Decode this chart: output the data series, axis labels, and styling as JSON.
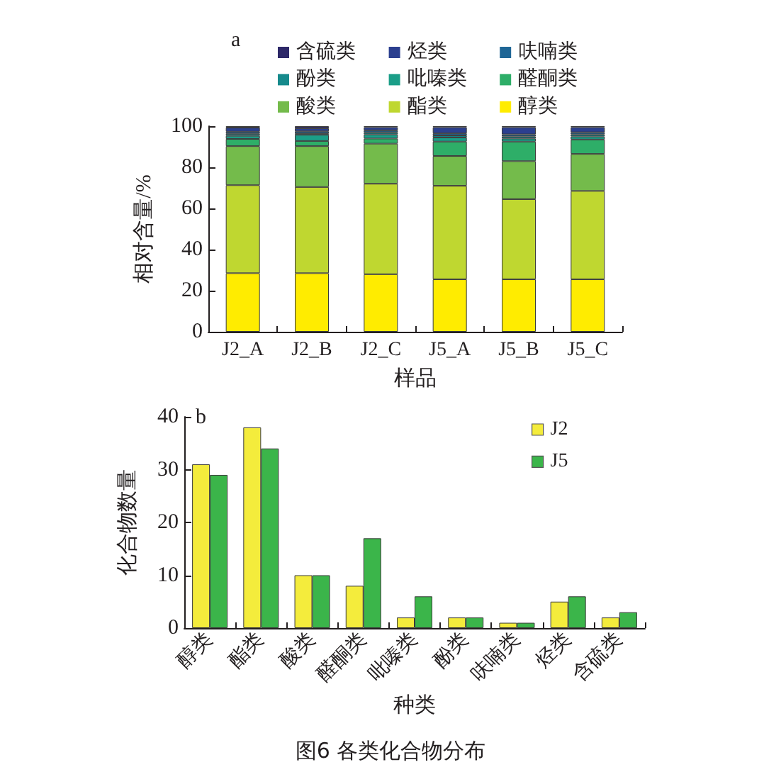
{
  "chart_data": [
    {
      "type": "bar",
      "title": "a",
      "xlabel": "样品",
      "ylabel": "相对含量/%",
      "categories": [
        "J2_A",
        "J2_B",
        "J2_C",
        "J5_A",
        "J5_B",
        "J5_C"
      ],
      "stacked": true,
      "legend": "top",
      "ylim": [
        0,
        100
      ],
      "yticks": [
        0,
        20,
        40,
        60,
        80,
        100
      ],
      "series": [
        {
          "name": "醇类",
          "color": "#ffec00",
          "values": [
            28.5,
            28.5,
            28,
            25.5,
            25.5,
            25.5
          ]
        },
        {
          "name": "酯类",
          "color": "#bfd730",
          "values": [
            42.8,
            41.9,
            44,
            45.5,
            39,
            43
          ]
        },
        {
          "name": "酸类",
          "color": "#74bb4b",
          "values": [
            19,
            19.9,
            19.5,
            14.5,
            18.5,
            18
          ]
        },
        {
          "name": "醛酮类",
          "color": "#2eae68",
          "values": [
            3.5,
            2.5,
            2.5,
            7,
            9.5,
            7
          ]
        },
        {
          "name": "吡嗪类",
          "color": "#1b9e88",
          "values": [
            1.5,
            3,
            2,
            2,
            1.5,
            1.5
          ]
        },
        {
          "name": "酚类",
          "color": "#168a8c",
          "values": [
            1,
            0.7,
            1,
            1,
            1,
            1
          ]
        },
        {
          "name": "呋喃类",
          "color": "#1f6696",
          "values": [
            1,
            1,
            1,
            1,
            1,
            1
          ]
        },
        {
          "name": "烃类",
          "color": "#2b3f8f",
          "values": [
            2,
            1.5,
            1.5,
            3,
            3.5,
            2.5
          ]
        },
        {
          "name": "含硫类",
          "color": "#2d2868",
          "values": [
            0.7,
            1,
            0.5,
            0.5,
            0.5,
            0.5
          ]
        }
      ]
    },
    {
      "type": "bar",
      "title": "b",
      "xlabel": "种类",
      "ylabel": "化合物数量",
      "categories": [
        "醇类",
        "酯类",
        "酸类",
        "醛酮类",
        "吡嗪类",
        "酚类",
        "呋喃类",
        "烃类",
        "含硫类"
      ],
      "legend": "top right",
      "ylim": [
        0,
        40
      ],
      "yticks": [
        0,
        10,
        20,
        30,
        40
      ],
      "series": [
        {
          "name": "J2",
          "color": "#f4ec3c",
          "values": [
            31,
            38,
            10,
            8,
            2,
            2,
            1,
            5,
            2
          ]
        },
        {
          "name": "J5",
          "color": "#3bb54a",
          "values": [
            29,
            34,
            10,
            17,
            6,
            2,
            1,
            6,
            3
          ]
        }
      ],
      "annotations": [
        "图6 各类化合物分布"
      ]
    }
  ]
}
